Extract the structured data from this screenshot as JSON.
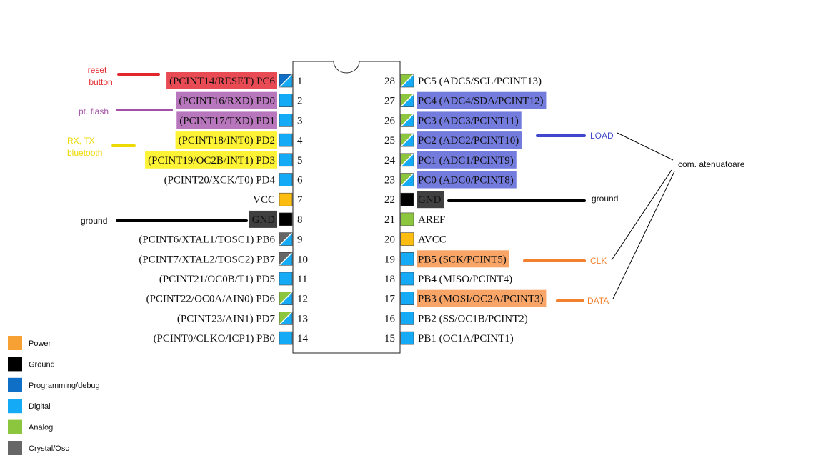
{
  "colors": {
    "power": "#F7A033",
    "ground": "#000000",
    "programming": "#0F6FC6",
    "digital": "#14AAF5",
    "analog": "#8CC63F",
    "crystal": "#666666",
    "vcc_pad": "#FDBD10",
    "hl_red": "#E8414B",
    "hl_purple": "#B46FB9",
    "hl_yellow": "#FFF22A",
    "hl_blue": "#6C74DB",
    "hl_orange": "#F9A060",
    "hl_gray": "#404040",
    "ann_red": "#E3262C",
    "ann_purple": "#A350A7",
    "ann_yellow": "#EDDA00",
    "ann_blue": "#3F48CC",
    "ann_orange": "#F2812F",
    "ann_black": "#000000"
  },
  "left_pins": [
    {
      "num": "1",
      "label": "(PCINT14/RESET) PC6",
      "pad": "prog-digital",
      "hl": "hl_red"
    },
    {
      "num": "2",
      "label": "(PCINT16/RXD) PD0",
      "pad": "digital",
      "hl": "hl_purple"
    },
    {
      "num": "3",
      "label": "(PCINT17/TXD) PD1",
      "pad": "digital",
      "hl": "hl_purple"
    },
    {
      "num": "4",
      "label": "(PCINT18/INT0) PD2",
      "pad": "digital",
      "hl": "hl_yellow"
    },
    {
      "num": "5",
      "label": "(PCINT19/OC2B/INT1) PD3",
      "pad": "digital",
      "hl": "hl_yellow"
    },
    {
      "num": "6",
      "label": "(PCINT20/XCK/T0) PD4",
      "pad": "digital",
      "hl": ""
    },
    {
      "num": "7",
      "label": "VCC",
      "pad": "vcc",
      "hl": ""
    },
    {
      "num": "8",
      "label": "GND",
      "pad": "ground",
      "hl": "hl_gray"
    },
    {
      "num": "9",
      "label": "(PCINT6/XTAL1/TOSC1) PB6",
      "pad": "crystal-digital",
      "hl": ""
    },
    {
      "num": "10",
      "label": "(PCINT7/XTAL2/TOSC2) PB7",
      "pad": "crystal-digital",
      "hl": ""
    },
    {
      "num": "11",
      "label": "(PCINT21/OC0B/T1) PD5",
      "pad": "digital",
      "hl": ""
    },
    {
      "num": "12",
      "label": "(PCINT22/OC0A/AIN0) PD6",
      "pad": "analog-digital",
      "hl": ""
    },
    {
      "num": "13",
      "label": "(PCINT23/AIN1) PD7",
      "pad": "analog-digital",
      "hl": ""
    },
    {
      "num": "14",
      "label": "(PCINT0/CLKO/ICP1) PB0",
      "pad": "digital",
      "hl": ""
    }
  ],
  "right_pins": [
    {
      "num": "28",
      "label": "PC5 (ADC5/SCL/PCINT13)",
      "pad": "analog-digital",
      "hl": ""
    },
    {
      "num": "27",
      "label": "PC4 (ADC4/SDA/PCINT12)",
      "pad": "analog-digital",
      "hl": "hl_blue"
    },
    {
      "num": "26",
      "label": "PC3 (ADC3/PCINT11)",
      "pad": "analog-digital",
      "hl": "hl_blue"
    },
    {
      "num": "25",
      "label": "PC2 (ADC2/PCINT10)",
      "pad": "analog-digital",
      "hl": "hl_blue"
    },
    {
      "num": "24",
      "label": "PC1 (ADC1/PCINT9)",
      "pad": "analog-digital",
      "hl": "hl_blue"
    },
    {
      "num": "23",
      "label": "PC0 (ADC0/PCINT8)",
      "pad": "analog-digital",
      "hl": "hl_blue"
    },
    {
      "num": "22",
      "label": "GND",
      "pad": "ground",
      "hl": "hl_gray"
    },
    {
      "num": "21",
      "label": "AREF",
      "pad": "analog",
      "hl": ""
    },
    {
      "num": "20",
      "label": "AVCC",
      "pad": "vcc",
      "hl": ""
    },
    {
      "num": "19",
      "label": "PB5 (SCK/PCINT5)",
      "pad": "digital",
      "hl": "hl_orange"
    },
    {
      "num": "18",
      "label": "PB4 (MISO/PCINT4)",
      "pad": "digital",
      "hl": ""
    },
    {
      "num": "17",
      "label": "PB3 (MOSI/OC2A/PCINT3)",
      "pad": "digital",
      "hl": "hl_orange"
    },
    {
      "num": "16",
      "label": "PB2 (SS/OC1B/PCINT2)",
      "pad": "digital",
      "hl": ""
    },
    {
      "num": "15",
      "label": "PB1 (OC1A/PCINT1)",
      "pad": "digital",
      "hl": ""
    }
  ],
  "annotations": {
    "reset": [
      "reset",
      "button"
    ],
    "flash": "pt. flash",
    "rxtx": [
      "RX, TX",
      "bluetooth"
    ],
    "ground_left": "ground",
    "ground_right": "ground",
    "load": "LOAD",
    "clk": "CLK",
    "data": "DATA",
    "com": "com. atenuatoare"
  },
  "legend": [
    {
      "label": "Power",
      "color_key": "power"
    },
    {
      "label": "Ground",
      "color_key": "ground"
    },
    {
      "label": "Programming/debug",
      "color_key": "programming"
    },
    {
      "label": "Digital",
      "color_key": "digital"
    },
    {
      "label": "Analog",
      "color_key": "analog"
    },
    {
      "label": "Crystal/Osc",
      "color_key": "crystal"
    }
  ]
}
